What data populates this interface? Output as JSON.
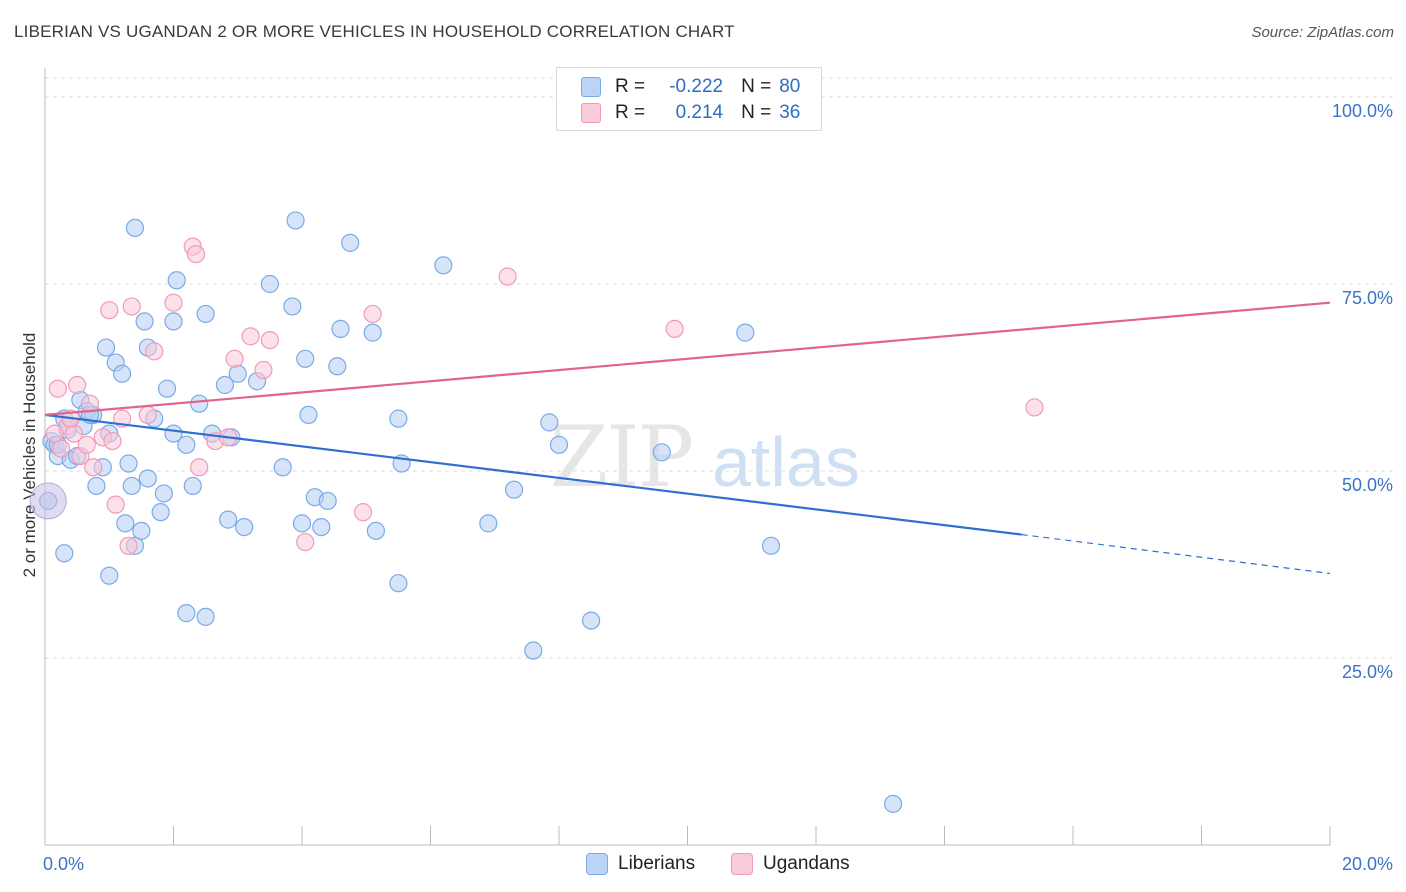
{
  "title": "LIBERIAN VS UGANDAN 2 OR MORE VEHICLES IN HOUSEHOLD CORRELATION CHART",
  "source": "Source: ZipAtlas.com",
  "watermark": {
    "zip": "ZIP",
    "atlas": "atlas"
  },
  "legend": {
    "r_label": "R =",
    "n_label": "N =",
    "rows": [
      {
        "r": "-0.222",
        "n": "80"
      },
      {
        "r": "0.214",
        "n": "36"
      }
    ]
  },
  "chart_data": {
    "type": "scatter",
    "title": "LIBERIAN VS UGANDAN 2 OR MORE VEHICLES IN HOUSEHOLD CORRELATION CHART",
    "xlabel": "",
    "ylabel": "2 or more Vehicles in Household",
    "xlim": [
      0,
      20
    ],
    "ylim": [
      0,
      100
    ],
    "x_ticks": [
      "0.0%",
      "20.0%"
    ],
    "y_ticks": [
      "25.0%",
      "50.0%",
      "75.0%",
      "100.0%"
    ],
    "y_tick_values": [
      25,
      50,
      75,
      100
    ],
    "grid": true,
    "legend_position": "top-center",
    "colors": {
      "liberians": "#7aaae8",
      "ugandans": "#f19ab8",
      "liberians_line": "#2f6fd0",
      "ugandans_line": "#e0648e"
    },
    "series": [
      {
        "name": "Liberians",
        "trend": {
          "x0": 0,
          "y0": 57.5,
          "x1": 15.2,
          "y1": 41.5,
          "dash_to_x": 20,
          "dash_to_y": 36.3
        },
        "points": [
          [
            0.05,
            46
          ],
          [
            0.1,
            54
          ],
          [
            0.15,
            53.5
          ],
          [
            0.2,
            52
          ],
          [
            0.3,
            57
          ],
          [
            0.35,
            55.5
          ],
          [
            0.4,
            51.5
          ],
          [
            0.5,
            52
          ],
          [
            0.55,
            59.5
          ],
          [
            0.6,
            56
          ],
          [
            0.65,
            58
          ],
          [
            0.75,
            57.5
          ],
          [
            0.8,
            48
          ],
          [
            0.9,
            50.5
          ],
          [
            0.95,
            66.5
          ],
          [
            1.0,
            55
          ],
          [
            1.1,
            64.5
          ],
          [
            1.2,
            63
          ],
          [
            1.25,
            43
          ],
          [
            1.3,
            51
          ],
          [
            1.35,
            48
          ],
          [
            1.5,
            42
          ],
          [
            1.55,
            70
          ],
          [
            1.6,
            66.5
          ],
          [
            1.6,
            49
          ],
          [
            1.7,
            57
          ],
          [
            1.8,
            44.5
          ],
          [
            1.85,
            47
          ],
          [
            1.9,
            61
          ],
          [
            2.0,
            55
          ],
          [
            2.05,
            75.5
          ],
          [
            2.2,
            53.5
          ],
          [
            2.3,
            48
          ],
          [
            2.4,
            59
          ],
          [
            2.5,
            71
          ],
          [
            2.6,
            55
          ],
          [
            2.8,
            61.5
          ],
          [
            2.85,
            43.5
          ],
          [
            2.9,
            54.5
          ],
          [
            3.0,
            63
          ],
          [
            3.1,
            42.5
          ],
          [
            3.3,
            62
          ],
          [
            3.5,
            75
          ],
          [
            3.7,
            50.5
          ],
          [
            3.85,
            72
          ],
          [
            3.9,
            83.5
          ],
          [
            4.0,
            43
          ],
          [
            4.05,
            65
          ],
          [
            4.1,
            57.5
          ],
          [
            4.2,
            46.5
          ],
          [
            4.3,
            42.5
          ],
          [
            4.4,
            46
          ],
          [
            4.55,
            64
          ],
          [
            4.6,
            69
          ],
          [
            4.75,
            80.5
          ],
          [
            5.1,
            68.5
          ],
          [
            5.15,
            42
          ],
          [
            5.5,
            57
          ],
          [
            5.5,
            35
          ],
          [
            5.55,
            51
          ],
          [
            6.2,
            77.5
          ],
          [
            6.9,
            43
          ],
          [
            7.3,
            47.5
          ],
          [
            7.6,
            26
          ],
          [
            7.85,
            56.5
          ],
          [
            8.0,
            53.5
          ],
          [
            8.5,
            30
          ],
          [
            9.6,
            52.5
          ],
          [
            10.9,
            68.5
          ],
          [
            11.3,
            40
          ],
          [
            13.2,
            5.5
          ],
          [
            1.0,
            36
          ],
          [
            1.4,
            40
          ],
          [
            2.2,
            31
          ],
          [
            2.5,
            30.5
          ],
          [
            0.3,
            39
          ],
          [
            1.4,
            82.5
          ],
          [
            0.2,
            53.5
          ],
          [
            0.7,
            57.5
          ],
          [
            2.0,
            70
          ]
        ]
      },
      {
        "name": "Ugandans",
        "trend": {
          "x0": 0,
          "y0": 57.5,
          "x1": 20,
          "y1": 72.5
        },
        "points": [
          [
            0.2,
            61
          ],
          [
            0.25,
            53
          ],
          [
            0.35,
            56
          ],
          [
            0.45,
            55
          ],
          [
            0.5,
            61.5
          ],
          [
            0.55,
            52
          ],
          [
            0.65,
            53.5
          ],
          [
            0.7,
            59
          ],
          [
            0.75,
            50.5
          ],
          [
            0.9,
            54.5
          ],
          [
            1.0,
            71.5
          ],
          [
            1.05,
            54
          ],
          [
            1.1,
            45.5
          ],
          [
            1.2,
            57
          ],
          [
            1.3,
            40
          ],
          [
            1.35,
            72
          ],
          [
            1.6,
            57.5
          ],
          [
            1.7,
            66
          ],
          [
            2.0,
            72.5
          ],
          [
            2.3,
            80
          ],
          [
            2.35,
            79
          ],
          [
            2.4,
            50.5
          ],
          [
            2.65,
            54
          ],
          [
            2.85,
            54.5
          ],
          [
            2.95,
            65
          ],
          [
            3.2,
            68
          ],
          [
            3.4,
            63.5
          ],
          [
            3.5,
            67.5
          ],
          [
            4.05,
            40.5
          ],
          [
            4.95,
            44.5
          ],
          [
            5.1,
            71
          ],
          [
            7.2,
            76
          ],
          [
            9.8,
            69
          ],
          [
            15.4,
            58.5
          ],
          [
            0.15,
            55
          ],
          [
            0.4,
            57
          ]
        ]
      }
    ]
  }
}
